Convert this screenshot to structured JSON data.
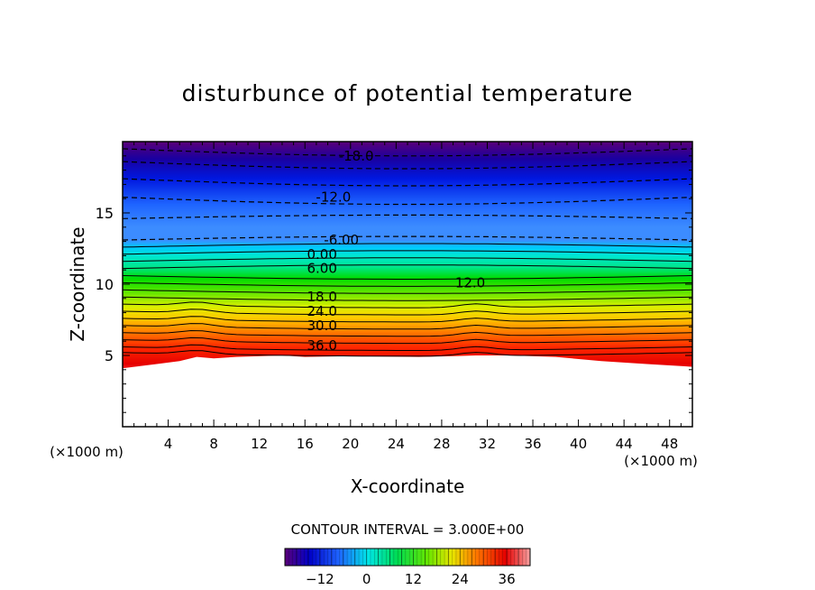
{
  "chart_data": {
    "type": "contour",
    "title": "disturbunce of potential temperature",
    "xlabel": "X-coordinate",
    "ylabel": "Z-coordinate",
    "x_unit": "(×1000 m)",
    "y_unit": "(×1000 m)",
    "xlim": [
      0,
      50
    ],
    "ylim": [
      0,
      20
    ],
    "x_ticks": [
      4,
      8,
      12,
      16,
      20,
      24,
      28,
      32,
      36,
      40,
      44,
      48
    ],
    "y_ticks": [
      5,
      10,
      15
    ],
    "contour_interval_text": "CONTOUR INTERVAL = 3.000E+00",
    "contour_interval": 3,
    "field_min": -21,
    "field_max": 40,
    "terrain_top_km": [
      4.1,
      4.4,
      4.6,
      4.9,
      4.8,
      4.9,
      5.0,
      4.9,
      4.95,
      4.9,
      4.95,
      5.0,
      5.0,
      4.9,
      4.6,
      4.4,
      4.2
    ],
    "terrain_x_km": [
      0,
      3,
      5,
      6.5,
      8,
      10,
      14,
      16,
      20,
      26,
      29,
      31,
      34,
      38,
      42,
      46,
      50
    ],
    "contour_labels": [
      {
        "text": "-18.0",
        "x": 20.5,
        "z": 19.0
      },
      {
        "text": "-12.0",
        "x": 18.5,
        "z": 16.1
      },
      {
        "text": "-6.00",
        "x": 19.2,
        "z": 13.1
      },
      {
        "text": "0.00",
        "x": 17.5,
        "z": 12.1
      },
      {
        "text": "6.00",
        "x": 17.5,
        "z": 11.1
      },
      {
        "text": "12.0",
        "x": 30.5,
        "z": 10.1
      },
      {
        "text": "18.0",
        "x": 17.5,
        "z": 9.1
      },
      {
        "text": "24.0",
        "x": 17.5,
        "z": 8.1
      },
      {
        "text": "30.0",
        "x": 17.5,
        "z": 7.1
      },
      {
        "text": "36.0",
        "x": 17.5,
        "z": 5.7
      }
    ],
    "colorbar": {
      "ticks": [
        -12,
        0,
        12,
        24,
        36
      ],
      "min": -21,
      "max": 42,
      "colors": [
        "#4b0082",
        "#0000c8",
        "#3c8cff",
        "#00e6e6",
        "#00dc00",
        "#e6e600",
        "#ff7800",
        "#e60000",
        "#f5a0a0"
      ]
    }
  }
}
